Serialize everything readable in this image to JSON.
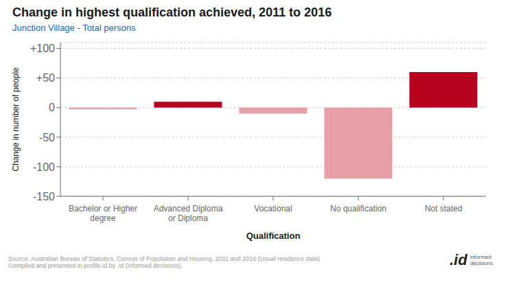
{
  "chart_data": {
    "type": "bar",
    "title": "Change in highest qualification achieved, 2011 to 2016",
    "subtitle": "Junction Village - Total persons",
    "categories": [
      "Bachelor or Higher\ndegree",
      "Advanced Diploma\nor Diploma",
      "Vocational",
      "No qualification",
      "Not stated"
    ],
    "values": [
      -3,
      10,
      -10,
      -120,
      60
    ],
    "colors": [
      "#e8a0a8",
      "#b5001f",
      "#e8a0a8",
      "#e8a0a8",
      "#b5001f"
    ],
    "x_label": "Qualification",
    "y_label": "Change in number of people",
    "ylim": [
      -150,
      110
    ],
    "yticks": [
      -150,
      -100,
      -50,
      0,
      {
        "value": 50,
        "label": "+50"
      },
      {
        "value": 100,
        "label": "+100"
      }
    ],
    "grid": true,
    "annotations": [
      "Source: Australian Bureau of Statistics, Census of Population and Housing, 2011 and 2016 (Usual residence data)\nCompiled and presented in profile.id by .id (informed decisions).",
      ".id",
      "informed\ndecisions"
    ]
  }
}
